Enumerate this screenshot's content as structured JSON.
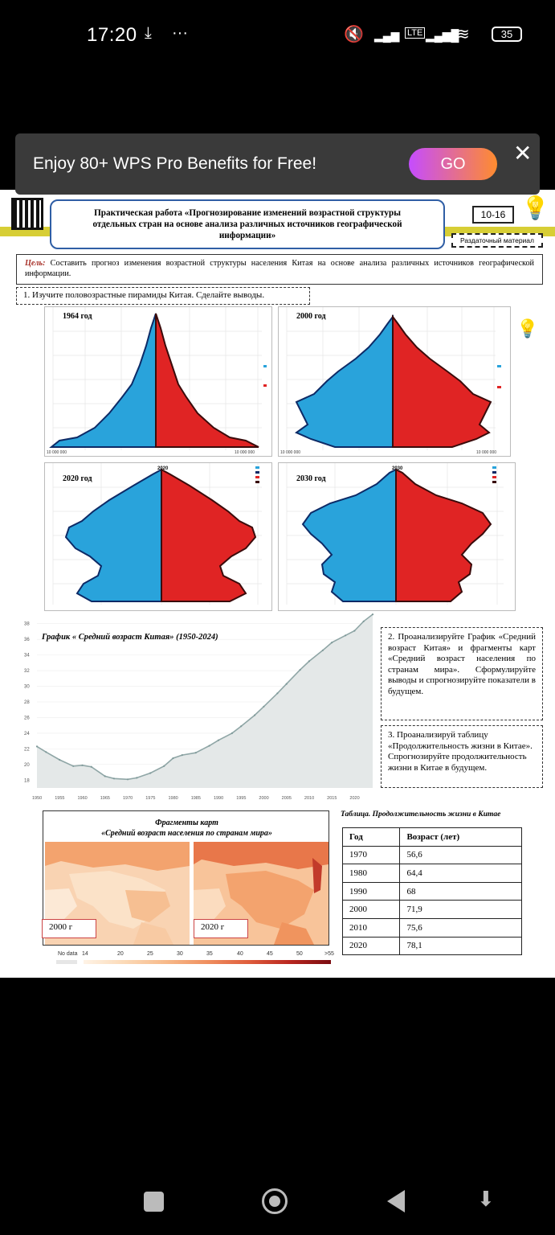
{
  "status_bar": {
    "time": "17:20",
    "battery": "35"
  },
  "banner": {
    "text": "Enjoy 80+ WPS Pro Benefits for Free!",
    "go_label": "GO",
    "close_label": "✕"
  },
  "doc": {
    "title_line1": "Практическая работа «Прогнозирование изменений возрастной структуры",
    "title_line2": "отдельных стран на основе анализа различных источников географической",
    "title_line3": "информации»",
    "number": "10-16",
    "handout": "Раздаточный материал",
    "goal_label": "Цель:",
    "goal_text": "Составить прогноз изменения возрастной структуры населения Китая на основе анализа различных источников географической информации.",
    "task1": "1. Изучите половозрастные пирамиды Китая. Сделайте выводы.",
    "pyramids": [
      {
        "label": "1964 год"
      },
      {
        "label": "2000 год"
      },
      {
        "label": "2020 год"
      },
      {
        "label": "2030 год"
      }
    ],
    "pyramid_header_2020": "2020",
    "pyramid_header_2030": "2030",
    "chart_title": "График « Средний возраст Китая» (1950-2024)",
    "task2": "2. Проанализируйте График «Средний возраст Китая» и фрагменты карт «Средний возраст населения по странам мира». Сформулируйте выводы и спрогнозируйте показатели в будущем.",
    "task3": "3. Проанализируй таблицу «Продолжительность жизни в Китае». Спрогнозируйте продолжительность жизни в Китае в будущем.",
    "maps_title_1": "Фрагменты карт",
    "maps_title_2": "«Средний возраст населения по странам мира»",
    "map_2000": "2000 г",
    "map_2020": "2020 г",
    "map_legend": [
      "No data",
      "14",
      "20",
      "25",
      "30",
      "35",
      "40",
      "45",
      "50",
      ">55"
    ],
    "table_title": "Таблица. Продолжительность жизни в Китае",
    "table_headers": [
      "Год",
      "Возраст (лет)"
    ],
    "table_rows": [
      [
        "1970",
        "56,6"
      ],
      [
        "1980",
        "64,4"
      ],
      [
        "1990",
        "68"
      ],
      [
        "2000",
        "71,9"
      ],
      [
        "2010",
        "75,6"
      ],
      [
        "2020",
        "78,1"
      ]
    ]
  },
  "chart_data": {
    "type": "area",
    "title": "График « Средний возраст Китая» (1950-2024)",
    "x": [
      1950,
      1952,
      1955,
      1958,
      1960,
      1962,
      1965,
      1967,
      1970,
      1972,
      1975,
      1978,
      1980,
      1982,
      1985,
      1988,
      1990,
      1993,
      1995,
      1998,
      2000,
      2003,
      2005,
      2008,
      2010,
      2013,
      2015,
      2018,
      2020,
      2022,
      2024
    ],
    "values": [
      22.3,
      21.6,
      20.6,
      19.8,
      19.9,
      19.7,
      18.5,
      18.2,
      18.1,
      18.3,
      18.9,
      19.8,
      20.8,
      21.2,
      21.5,
      22.4,
      23.1,
      24.0,
      24.9,
      26.3,
      27.4,
      29.1,
      30.3,
      32.1,
      33.2,
      34.6,
      35.6,
      36.5,
      37.1,
      38.3,
      39.2
    ],
    "xticks": [
      "1950",
      "1955",
      "1960",
      "1965",
      "1970",
      "1975",
      "1980",
      "1985",
      "1990",
      "1995",
      "2000",
      "2005",
      "2010",
      "2015",
      "2020"
    ],
    "yticks": [
      "18",
      "20",
      "22",
      "24",
      "26",
      "28",
      "30",
      "32",
      "34",
      "36",
      "38"
    ],
    "xlim": [
      1950,
      2024
    ],
    "ylim": [
      17,
      39
    ],
    "fill_color": "#e4e8e8",
    "line_color": "#8fa6a6"
  }
}
